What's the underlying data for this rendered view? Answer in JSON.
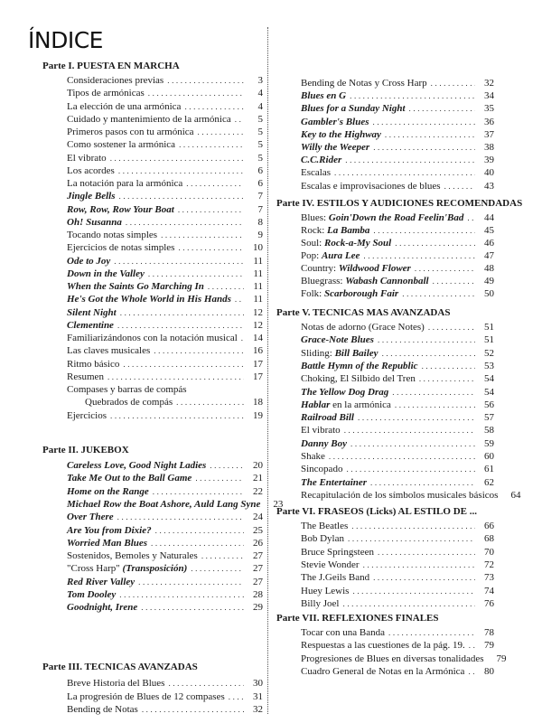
{
  "title": "ÍNDICE",
  "parts": [
    {
      "heading": "Parte I. PUESTA EN MARCHA",
      "items": [
        {
          "parts": [
            {
              "t": "Consideraciones previas"
            }
          ],
          "page": "3"
        },
        {
          "parts": [
            {
              "t": "Tipos de armónicas"
            }
          ],
          "page": "4"
        },
        {
          "parts": [
            {
              "t": "La elección de una armónica"
            }
          ],
          "page": "4"
        },
        {
          "parts": [
            {
              "t": "Cuidado y mantenimiento de la armónica"
            }
          ],
          "page": "5"
        },
        {
          "parts": [
            {
              "t": "Primeros pasos con tu armónica"
            }
          ],
          "page": "5"
        },
        {
          "parts": [
            {
              "t": "Como sostener la armónica"
            }
          ],
          "page": "5"
        },
        {
          "parts": [
            {
              "t": "El vibrato"
            }
          ],
          "page": "5"
        },
        {
          "parts": [
            {
              "t": "Los acordes"
            }
          ],
          "page": "6"
        },
        {
          "parts": [
            {
              "t": "La notación para la armónica"
            }
          ],
          "page": "6"
        },
        {
          "parts": [
            {
              "t": "Jingle Bells",
              "i": true
            }
          ],
          "page": "7"
        },
        {
          "parts": [
            {
              "t": "Row, Row, Row Your Boat",
              "i": true
            }
          ],
          "page": "7"
        },
        {
          "parts": [
            {
              "t": "Oh! Susanna",
              "i": true
            }
          ],
          "page": "8"
        },
        {
          "parts": [
            {
              "t": "Tocando notas simples"
            }
          ],
          "page": "9"
        },
        {
          "parts": [
            {
              "t": "Ejercicios de notas simples"
            }
          ],
          "page": "10"
        },
        {
          "parts": [
            {
              "t": "Ode to Joy",
              "i": true
            }
          ],
          "page": "11"
        },
        {
          "parts": [
            {
              "t": "Down in the Valley",
              "i": true
            }
          ],
          "page": "11"
        },
        {
          "parts": [
            {
              "t": "When the Saints Go Marching In",
              "i": true
            }
          ],
          "page": "11"
        },
        {
          "parts": [
            {
              "t": "He's Got the Whole World in His Hands",
              "i": true
            }
          ],
          "page": "11"
        },
        {
          "parts": [
            {
              "t": "Silent Night",
              "i": true
            }
          ],
          "page": "12"
        },
        {
          "parts": [
            {
              "t": "Clementine",
              "i": true
            }
          ],
          "page": "12"
        },
        {
          "parts": [
            {
              "t": "Familiarizándonos con la notación musical"
            }
          ],
          "page": "14"
        },
        {
          "parts": [
            {
              "t": "Las claves musicales"
            }
          ],
          "page": "16"
        },
        {
          "parts": [
            {
              "t": "Ritmo básico"
            }
          ],
          "page": "17"
        },
        {
          "parts": [
            {
              "t": "Resumen"
            }
          ],
          "page": "17"
        },
        {
          "parts": [
            {
              "t": "Compases y barras de compás"
            }
          ],
          "page": "",
          "noleader": true
        },
        {
          "parts": [
            {
              "t": "Quebrados de compás"
            }
          ],
          "page": "18",
          "indent": true
        },
        {
          "parts": [
            {
              "t": "Ejercicios"
            }
          ],
          "page": "19"
        }
      ]
    },
    {
      "heading": "Parte II. JUKEBOX",
      "items": [
        {
          "parts": [
            {
              "t": "Careless Love, Good Night Ladies",
              "i": true
            }
          ],
          "page": "20"
        },
        {
          "parts": [
            {
              "t": "Take Me Out to the Ball Game",
              "i": true
            }
          ],
          "page": "21"
        },
        {
          "parts": [
            {
              "t": "Home on the Range",
              "i": true
            }
          ],
          "page": "22"
        },
        {
          "parts": [
            {
              "t": "Michael Row the Boat Ashore, Auld Lang Syne",
              "i": true
            }
          ],
          "page": "23",
          "noleader": true
        },
        {
          "parts": [
            {
              "t": "Over There",
              "i": true
            }
          ],
          "page": "24"
        },
        {
          "parts": [
            {
              "t": "Are You from Dixie?",
              "i": true
            }
          ],
          "page": "25"
        },
        {
          "parts": [
            {
              "t": "Worried Man Blues",
              "i": true
            }
          ],
          "page": "26"
        },
        {
          "parts": [
            {
              "t": "Sostenidos, Bemoles y Naturales"
            }
          ],
          "page": "27"
        },
        {
          "parts": [
            {
              "t": "\"Cross Harp\" "
            },
            {
              "t": "(Transposición)",
              "i": true
            }
          ],
          "page": "27"
        },
        {
          "parts": [
            {
              "t": "Red River Valley",
              "i": true
            }
          ],
          "page": "27"
        },
        {
          "parts": [
            {
              "t": "Tom Dooley",
              "i": true
            }
          ],
          "page": "28"
        },
        {
          "parts": [
            {
              "t": "Goodnight, Irene",
              "i": true
            }
          ],
          "page": "29"
        }
      ]
    },
    {
      "heading": "Parte III.  TECNICAS AVANZADAS",
      "items": [
        {
          "parts": [
            {
              "t": "Breve Historia del Blues"
            }
          ],
          "page": "30"
        },
        {
          "parts": [
            {
              "t": "La progresión de Blues de 12 compases"
            }
          ],
          "page": "31"
        },
        {
          "parts": [
            {
              "t": "Bending de Notas"
            }
          ],
          "page": "32"
        },
        {
          "parts": [
            {
              "t": "Bending de Notas y Cross Harp"
            }
          ],
          "page": "32"
        },
        {
          "parts": [
            {
              "t": "Blues en G",
              "i": true
            }
          ],
          "page": "34"
        },
        {
          "parts": [
            {
              "t": "Blues for a Sunday Night",
              "i": true
            }
          ],
          "page": "35"
        },
        {
          "parts": [
            {
              "t": "Gambler's Blues",
              "i": true
            }
          ],
          "page": "36"
        },
        {
          "parts": [
            {
              "t": "Key to the Highway",
              "i": true
            }
          ],
          "page": "37"
        },
        {
          "parts": [
            {
              "t": "Willy the Weeper",
              "i": true
            }
          ],
          "page": "38"
        },
        {
          "parts": [
            {
              "t": "C.C.Rider",
              "i": true
            }
          ],
          "page": "39"
        },
        {
          "parts": [
            {
              "t": "Escalas"
            }
          ],
          "page": "40"
        },
        {
          "parts": [
            {
              "t": "Escalas e improvisaciones de blues"
            }
          ],
          "page": "43"
        }
      ]
    },
    {
      "heading": "Parte IV. ESTILOS Y AUDICIONES RECOMENDADAS",
      "items": [
        {
          "parts": [
            {
              "t": "Blues: "
            },
            {
              "t": "Goin'Down the Road Feelin'Bad",
              "i": true
            }
          ],
          "page": "44"
        },
        {
          "parts": [
            {
              "t": "Rock: "
            },
            {
              "t": "La Bamba",
              "i": true
            }
          ],
          "page": "45"
        },
        {
          "parts": [
            {
              "t": "Soul: "
            },
            {
              "t": "Rock-a-My Soul",
              "i": true
            }
          ],
          "page": "46"
        },
        {
          "parts": [
            {
              "t": "Pop: "
            },
            {
              "t": "Aura Lee",
              "i": true
            }
          ],
          "page": "47"
        },
        {
          "parts": [
            {
              "t": "Country: "
            },
            {
              "t": "Wildwood Flower",
              "i": true
            }
          ],
          "page": "48"
        },
        {
          "parts": [
            {
              "t": "Bluegrass: "
            },
            {
              "t": "Wabash Cannonball",
              "i": true
            }
          ],
          "page": "49"
        },
        {
          "parts": [
            {
              "t": "Folk: "
            },
            {
              "t": "Scarborough Fair",
              "i": true
            }
          ],
          "page": "50"
        }
      ]
    },
    {
      "heading": "Parte V. TECNICAS MAS AVANZADAS",
      "items": [
        {
          "parts": [
            {
              "t": "Notas de adorno (Grace Notes)"
            }
          ],
          "page": "51"
        },
        {
          "parts": [
            {
              "t": "Grace-Note Blues",
              "i": true
            }
          ],
          "page": "51"
        },
        {
          "parts": [
            {
              "t": "Sliding: "
            },
            {
              "t": "Bill Bailey",
              "i": true
            }
          ],
          "page": "52"
        },
        {
          "parts": [
            {
              "t": "Battle Hymn of the Republic",
              "i": true
            }
          ],
          "page": "53"
        },
        {
          "parts": [
            {
              "t": "Choking, El Silbido del Tren"
            }
          ],
          "page": "54"
        },
        {
          "parts": [
            {
              "t": "The Yellow Dog Drag",
              "i": true
            }
          ],
          "page": "54"
        },
        {
          "parts": [
            {
              "t": "Hablar",
              "i": true
            },
            {
              "t": " en la armónica"
            }
          ],
          "page": "56"
        },
        {
          "parts": [
            {
              "t": "Railroad Bill",
              "i": true
            }
          ],
          "page": "57"
        },
        {
          "parts": [
            {
              "t": "El vibrato"
            }
          ],
          "page": "58"
        },
        {
          "parts": [
            {
              "t": "Danny Boy",
              "i": true
            }
          ],
          "page": "59"
        },
        {
          "parts": [
            {
              "t": "Shake"
            }
          ],
          "page": "60"
        },
        {
          "parts": [
            {
              "t": "Sincopado"
            }
          ],
          "page": "61"
        },
        {
          "parts": [
            {
              "t": "The Entertainer",
              "i": true
            }
          ],
          "page": "62"
        },
        {
          "parts": [
            {
              "t": "Recapitulación de los símbolos musicales básicos"
            }
          ],
          "page": "64",
          "noleader": true
        }
      ]
    },
    {
      "heading": "Parte VI. FRASEOS (Licks) AL ESTILO DE ...",
      "items": [
        {
          "parts": [
            {
              "t": "The Beatles"
            }
          ],
          "page": "66"
        },
        {
          "parts": [
            {
              "t": "Bob Dylan"
            }
          ],
          "page": "68"
        },
        {
          "parts": [
            {
              "t": "Bruce Springsteen"
            }
          ],
          "page": "70"
        },
        {
          "parts": [
            {
              "t": "Stevie Wonder"
            }
          ],
          "page": "72"
        },
        {
          "parts": [
            {
              "t": "The J.Geils Band"
            }
          ],
          "page": "73"
        },
        {
          "parts": [
            {
              "t": "Huey Lewis"
            }
          ],
          "page": "74"
        },
        {
          "parts": [
            {
              "t": "Billy Joel"
            }
          ],
          "page": "76"
        }
      ]
    },
    {
      "heading": "Parte VII. REFLEXIONES FINALES",
      "items": [
        {
          "parts": [
            {
              "t": "Tocar con una Banda"
            }
          ],
          "page": "78"
        },
        {
          "parts": [
            {
              "t": "Respuestas a las cuestiones de la pág. 19."
            }
          ],
          "page": "79"
        },
        {
          "parts": [
            {
              "t": "Progresiones de Blues en diversas tonalidades"
            }
          ],
          "page": "79"
        },
        {
          "parts": [
            {
              "t": "Cuadro General de Notas en la Armónica"
            }
          ],
          "page": "80"
        }
      ]
    }
  ]
}
